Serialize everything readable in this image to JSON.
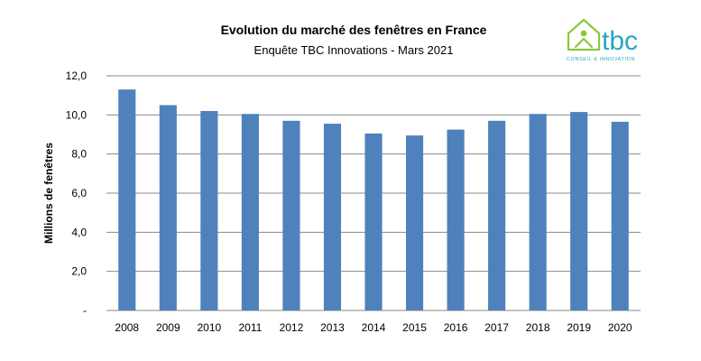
{
  "chart_data": {
    "type": "bar",
    "title": "Evolution du marché des fenêtres en France",
    "subtitle": "Enquête TBC Innovations - Mars 2021",
    "ylabel": "Millions de fenêtres",
    "categories": [
      "2008",
      "2009",
      "2010",
      "2011",
      "2012",
      "2013",
      "2014",
      "2015",
      "2016",
      "2017",
      "2018",
      "2019",
      "2020"
    ],
    "values": [
      11.3,
      10.5,
      10.2,
      10.05,
      9.7,
      9.55,
      9.05,
      8.95,
      9.25,
      9.7,
      10.05,
      10.15,
      9.65
    ],
    "ylim": [
      0,
      12
    ],
    "yticks": [
      "-",
      "2,0",
      "4,0",
      "6,0",
      "8,0",
      "10,0",
      "12,0"
    ],
    "grid": true,
    "bar_color": "#4f81bd",
    "grid_color": "#888888"
  },
  "logo": {
    "name": "tbc",
    "tagline": "CONSEIL & INNOVATION",
    "text_color": "#2aa6c4",
    "house_color": "#8dc63f",
    "icon": "house-person-icon"
  }
}
